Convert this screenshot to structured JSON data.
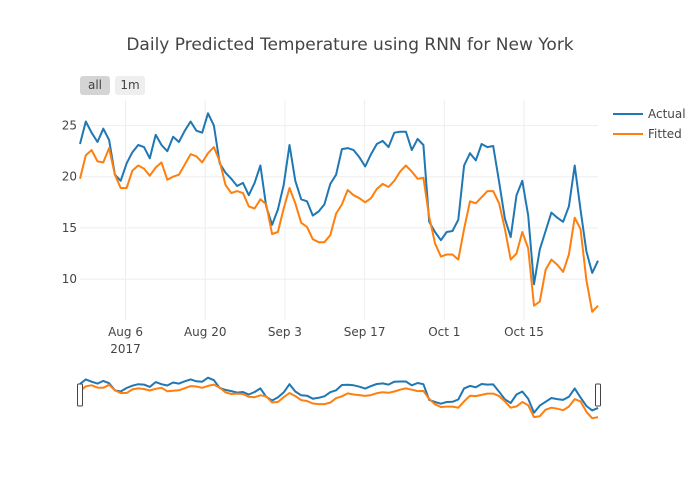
{
  "chart_data": {
    "type": "line",
    "title": "Daily Predicted Temperature using RNN for New York",
    "xlabel": "",
    "ylabel": "",
    "x_start": "2017-07-29",
    "x_end": "2017-10-28",
    "ylim": [
      6.0,
      27.5
    ],
    "y_ticks": [
      10,
      15,
      20,
      25
    ],
    "x_ticks": [
      {
        "date": "2017-08-06",
        "label": "Aug 6",
        "sublabel": "2017"
      },
      {
        "date": "2017-08-20",
        "label": "Aug 20",
        "sublabel": ""
      },
      {
        "date": "2017-09-03",
        "label": "Sep 3",
        "sublabel": ""
      },
      {
        "date": "2017-09-17",
        "label": "Sep 17",
        "sublabel": ""
      },
      {
        "date": "2017-10-01",
        "label": "Oct 1",
        "sublabel": ""
      },
      {
        "date": "2017-10-15",
        "label": "Oct 15",
        "sublabel": ""
      }
    ],
    "grid": true,
    "legend_position": "top-right",
    "colors": {
      "Actual": "#1f77b4",
      "Fitted": "#ff7f0e"
    },
    "series": [
      {
        "name": "Actual",
        "color": "#1f77b4",
        "values": [
          23.2,
          25.4,
          24.3,
          23.4,
          24.7,
          23.6,
          20.2,
          19.6,
          21.3,
          22.4,
          23.1,
          22.9,
          21.8,
          24.1,
          23.1,
          22.5,
          23.9,
          23.4,
          24.5,
          25.4,
          24.5,
          24.3,
          26.2,
          25.0,
          21.3,
          20.4,
          19.8,
          19.1,
          19.4,
          18.2,
          19.4,
          21.1,
          17.1,
          15.3,
          16.8,
          19.2,
          23.1,
          19.6,
          17.8,
          17.6,
          16.2,
          16.6,
          17.3,
          19.3,
          20.2,
          22.7,
          22.8,
          22.6,
          21.9,
          21.0,
          22.2,
          23.2,
          23.5,
          22.9,
          24.3,
          24.4,
          24.4,
          22.6,
          23.7,
          23.1,
          15.6,
          14.6,
          13.8,
          14.6,
          14.7,
          15.8,
          21.1,
          22.3,
          21.6,
          23.2,
          22.9,
          23.0,
          19.5,
          15.9,
          14.1,
          18.2,
          19.6,
          16.2,
          9.5,
          12.9,
          14.7,
          16.5,
          16.0,
          15.6,
          17.1,
          21.1,
          16.8,
          12.7,
          10.6,
          11.8
        ]
      },
      {
        "name": "Fitted",
        "color": "#ff7f0e",
        "values": [
          19.8,
          22.1,
          22.6,
          21.5,
          21.4,
          22.8,
          20.2,
          18.9,
          18.9,
          20.6,
          21.1,
          20.8,
          20.1,
          20.9,
          21.4,
          19.7,
          20.0,
          20.2,
          21.2,
          22.2,
          22.0,
          21.4,
          22.3,
          22.9,
          21.5,
          19.2,
          18.4,
          18.6,
          18.4,
          17.1,
          16.9,
          17.8,
          17.3,
          14.4,
          14.6,
          16.9,
          18.9,
          17.4,
          15.5,
          15.1,
          13.9,
          13.6,
          13.6,
          14.3,
          16.4,
          17.3,
          18.7,
          18.2,
          17.9,
          17.5,
          17.9,
          18.8,
          19.3,
          19.0,
          19.6,
          20.5,
          21.1,
          20.5,
          19.8,
          19.9,
          16.1,
          13.5,
          12.2,
          12.4,
          12.4,
          11.9,
          14.9,
          17.6,
          17.4,
          18.0,
          18.6,
          18.6,
          17.4,
          14.9,
          11.9,
          12.5,
          14.6,
          13.0,
          7.4,
          7.8,
          10.9,
          11.9,
          11.4,
          10.7,
          12.4,
          16.0,
          14.9,
          9.9,
          6.8,
          7.4
        ]
      }
    ],
    "buttons": [
      {
        "label": "all",
        "active": true
      },
      {
        "label": "1m",
        "active": false
      }
    ],
    "range_slider": true
  }
}
